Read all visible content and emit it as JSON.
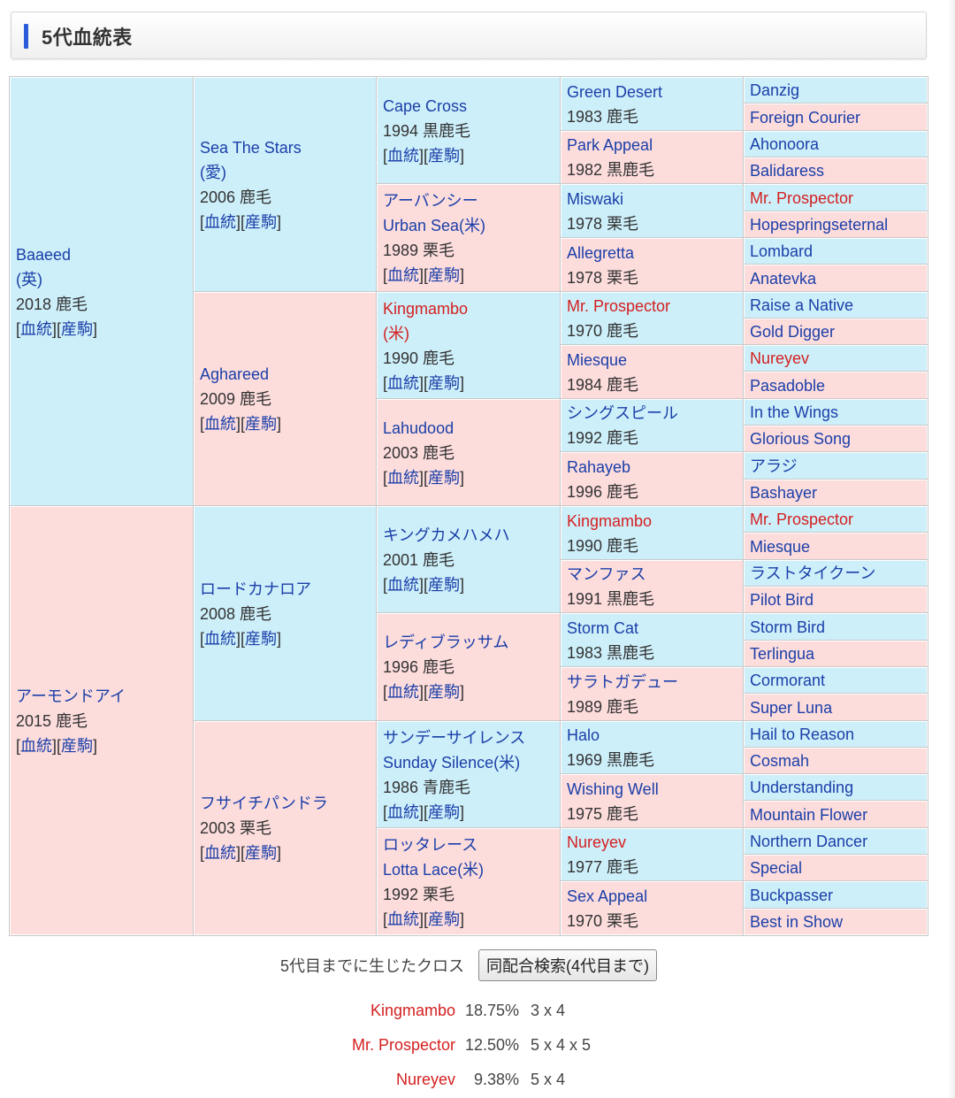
{
  "section_title": "5代血統表",
  "link_labels": {
    "pedigree": "血統",
    "offspring": "産駒"
  },
  "pedigree": {
    "gen1": [
      {
        "name": "Baaeed",
        "origin": "(英)",
        "info": "2018 鹿毛",
        "red": false,
        "sex": "m"
      },
      {
        "name": "アーモンドアイ",
        "origin": "",
        "info": "2015 鹿毛",
        "red": false,
        "sex": "f"
      }
    ],
    "gen2": [
      {
        "name": "Sea The Stars",
        "origin": "(愛)",
        "info": "2006 鹿毛",
        "red": false,
        "sex": "m"
      },
      {
        "name": "Aghareed",
        "origin": "",
        "info": "2009 鹿毛",
        "red": false,
        "sex": "f"
      },
      {
        "name": "ロードカナロア",
        "origin": "",
        "info": "2008 鹿毛",
        "red": false,
        "sex": "m"
      },
      {
        "name": "フサイチパンドラ",
        "origin": "",
        "info": "2003 栗毛",
        "red": false,
        "sex": "f"
      }
    ],
    "gen3": [
      {
        "name": "Cape Cross",
        "origin": "",
        "info": "1994 黒鹿毛",
        "red": false,
        "sex": "m"
      },
      {
        "name": "アーバンシー",
        "origin": "Urban Sea(米)",
        "info": "1989 栗毛",
        "red": false,
        "sex": "f"
      },
      {
        "name": "Kingmambo",
        "origin": "(米)",
        "info": "1990 鹿毛",
        "red": true,
        "sex": "m"
      },
      {
        "name": "Lahudood",
        "origin": "",
        "info": "2003 鹿毛",
        "red": false,
        "sex": "f"
      },
      {
        "name": "キングカメハメハ",
        "origin": "",
        "info": "2001 鹿毛",
        "red": false,
        "sex": "m"
      },
      {
        "name": "レディブラッサム",
        "origin": "",
        "info": "1996 鹿毛",
        "red": false,
        "sex": "f"
      },
      {
        "name": "サンデーサイレンス",
        "origin": "Sunday Silence(米)",
        "info": "1986 青鹿毛",
        "red": false,
        "sex": "m"
      },
      {
        "name": "ロッタレース",
        "origin": "Lotta Lace(米)",
        "info": "1992 栗毛",
        "red": false,
        "sex": "f"
      }
    ],
    "gen4": [
      {
        "name": "Green Desert",
        "info": "1983 鹿毛",
        "red": false,
        "sex": "m"
      },
      {
        "name": "Park Appeal",
        "info": "1982 黒鹿毛",
        "red": false,
        "sex": "f"
      },
      {
        "name": "Miswaki",
        "info": "1978 栗毛",
        "red": false,
        "sex": "m"
      },
      {
        "name": "Allegretta",
        "info": "1978 栗毛",
        "red": false,
        "sex": "f"
      },
      {
        "name": "Mr. Prospector",
        "info": "1970 鹿毛",
        "red": true,
        "sex": "m"
      },
      {
        "name": "Miesque",
        "info": "1984 鹿毛",
        "red": false,
        "sex": "f"
      },
      {
        "name": "シングスピール",
        "info": "1992 鹿毛",
        "red": false,
        "sex": "m"
      },
      {
        "name": "Rahayeb",
        "info": "1996 鹿毛",
        "red": false,
        "sex": "f"
      },
      {
        "name": "Kingmambo",
        "info": "1990 鹿毛",
        "red": true,
        "sex": "m"
      },
      {
        "name": "マンファス",
        "info": "1991 黒鹿毛",
        "red": false,
        "sex": "f"
      },
      {
        "name": "Storm Cat",
        "info": "1983 黒鹿毛",
        "red": false,
        "sex": "m"
      },
      {
        "name": "サラトガデュー",
        "info": "1989 鹿毛",
        "red": false,
        "sex": "f"
      },
      {
        "name": "Halo",
        "info": "1969 黒鹿毛",
        "red": false,
        "sex": "m"
      },
      {
        "name": "Wishing Well",
        "info": "1975 鹿毛",
        "red": false,
        "sex": "f"
      },
      {
        "name": "Nureyev",
        "info": "1977 鹿毛",
        "red": true,
        "sex": "m"
      },
      {
        "name": "Sex Appeal",
        "info": "1970 栗毛",
        "red": false,
        "sex": "f"
      }
    ],
    "gen5": [
      {
        "name": "Danzig",
        "red": false,
        "sex": "m"
      },
      {
        "name": "Foreign Courier",
        "red": false,
        "sex": "f"
      },
      {
        "name": "Ahonoora",
        "red": false,
        "sex": "m"
      },
      {
        "name": "Balidaress",
        "red": false,
        "sex": "f"
      },
      {
        "name": "Mr. Prospector",
        "red": true,
        "sex": "m"
      },
      {
        "name": "Hopespringseternal",
        "red": false,
        "sex": "f"
      },
      {
        "name": "Lombard",
        "red": false,
        "sex": "m"
      },
      {
        "name": "Anatevka",
        "red": false,
        "sex": "f"
      },
      {
        "name": "Raise a Native",
        "red": false,
        "sex": "m"
      },
      {
        "name": "Gold Digger",
        "red": false,
        "sex": "f"
      },
      {
        "name": "Nureyev",
        "red": true,
        "sex": "m"
      },
      {
        "name": "Pasadoble",
        "red": false,
        "sex": "f"
      },
      {
        "name": "In the Wings",
        "red": false,
        "sex": "m"
      },
      {
        "name": "Glorious Song",
        "red": false,
        "sex": "f"
      },
      {
        "name": "アラジ",
        "red": false,
        "sex": "m"
      },
      {
        "name": "Bashayer",
        "red": false,
        "sex": "f"
      },
      {
        "name": "Mr. Prospector",
        "red": true,
        "sex": "m"
      },
      {
        "name": "Miesque",
        "red": false,
        "sex": "f"
      },
      {
        "name": "ラストタイクーン",
        "red": false,
        "sex": "m"
      },
      {
        "name": "Pilot Bird",
        "red": false,
        "sex": "f"
      },
      {
        "name": "Storm Bird",
        "red": false,
        "sex": "m"
      },
      {
        "name": "Terlingua",
        "red": false,
        "sex": "f"
      },
      {
        "name": "Cormorant",
        "red": false,
        "sex": "m"
      },
      {
        "name": "Super Luna",
        "red": false,
        "sex": "f"
      },
      {
        "name": "Hail to Reason",
        "red": false,
        "sex": "m"
      },
      {
        "name": "Cosmah",
        "red": false,
        "sex": "f"
      },
      {
        "name": "Understanding",
        "red": false,
        "sex": "m"
      },
      {
        "name": "Mountain Flower",
        "red": false,
        "sex": "f"
      },
      {
        "name": "Northern Dancer",
        "red": false,
        "sex": "m"
      },
      {
        "name": "Special",
        "red": false,
        "sex": "f"
      },
      {
        "name": "Buckpasser",
        "red": false,
        "sex": "m"
      },
      {
        "name": "Best in Show",
        "red": false,
        "sex": "f"
      }
    ]
  },
  "cross": {
    "label": "5代目までに生じたクロス",
    "button_label": "同配合検索(4代目まで)",
    "rows": [
      {
        "name": "Kingmambo",
        "percent": "18.75%",
        "gens": "3 x 4"
      },
      {
        "name": "Mr. Prospector",
        "percent": "12.50%",
        "gens": "5 x 4 x 5"
      },
      {
        "name": "Nureyev",
        "percent": "9.38%",
        "gens": "5 x 4"
      }
    ]
  }
}
